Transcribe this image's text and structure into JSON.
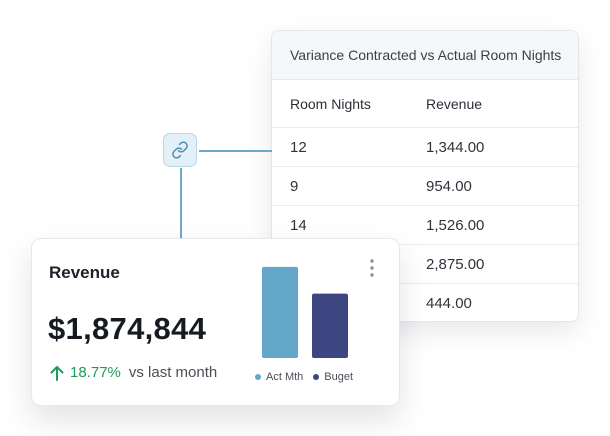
{
  "table": {
    "title": "Variance Contracted vs Actual Room Nights",
    "headers": [
      "Room Nights",
      "Revenue"
    ],
    "rows": [
      [
        "12",
        "1,344.00"
      ],
      [
        "9",
        "954.00"
      ],
      [
        "14",
        "1,526.00"
      ],
      [
        "",
        "2,875.00"
      ],
      [
        "",
        "444.00"
      ]
    ]
  },
  "connector": {
    "icon": "link-icon"
  },
  "revenue_card": {
    "title": "Revenue",
    "amount": "$1,874,844",
    "change_pct": "18.77%",
    "change_label": "vs last month",
    "change_direction": "up",
    "more_icon": "more-vertical-icon"
  },
  "chart_data": {
    "type": "bar",
    "categories": [
      "Act Mth",
      "Buget"
    ],
    "values": [
      92,
      65
    ],
    "ylim": [
      0,
      100
    ],
    "colors": [
      "#63a8c8",
      "#3d4680"
    ],
    "legend": [
      "Act Mth",
      "Buget"
    ],
    "legend_position": "bottom",
    "grid": false
  },
  "colors": {
    "accent_link": "#6ea7c9",
    "positive": "#1f9a5a",
    "act_mth": "#63a8c8",
    "budget": "#3d4680"
  }
}
